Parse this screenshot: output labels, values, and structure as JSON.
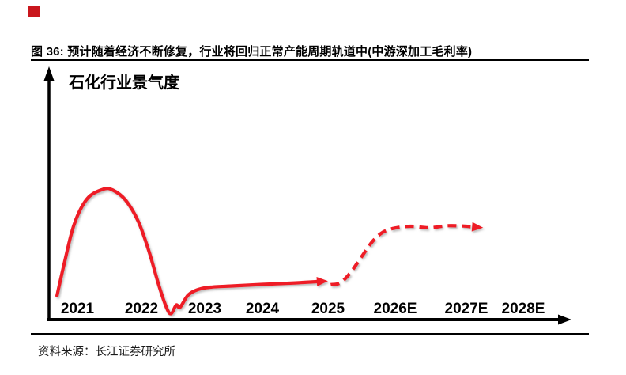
{
  "colors": {
    "brand_red": "#c9161d",
    "curve_red": "#ee1c25",
    "axis_black": "#000000",
    "text_black": "#000000"
  },
  "header": {
    "figure_title": "图 36: 预计随着经济不断修复，行业将回归正常产能周期轨道中(中游深加工毛利率)"
  },
  "chart_data": {
    "type": "line",
    "title": "石化行业景气度",
    "xlabel": "",
    "ylabel": "石化行业景气度",
    "ylim": [
      0,
      100
    ],
    "grid": false,
    "legend_position": "none",
    "x_labels": [
      "2021",
      "2022",
      "2023",
      "2024",
      "2025",
      "2026E",
      "2027E",
      "2028E"
    ],
    "note": "示意曲线：纵轴无数值刻度，数值为0-100的相对景气度估读",
    "series": [
      {
        "id": "historical-solid",
        "style": "solid",
        "color": "#ee1c25",
        "arrow_end": true,
        "points": [
          [
            2020.68,
            9.5
          ],
          [
            2020.8,
            23
          ],
          [
            2020.95,
            38
          ],
          [
            2021.15,
            48
          ],
          [
            2021.4,
            51.8
          ],
          [
            2021.55,
            51.5
          ],
          [
            2021.75,
            47.5
          ],
          [
            2021.95,
            39
          ],
          [
            2022.12,
            27
          ],
          [
            2022.27,
            14
          ],
          [
            2022.4,
            4.5
          ],
          [
            2022.47,
            2.4
          ],
          [
            2022.55,
            5.8
          ],
          [
            2022.61,
            4.9
          ],
          [
            2022.74,
            9.8
          ],
          [
            2022.9,
            12
          ],
          [
            2023.1,
            12.9
          ],
          [
            2023.5,
            13.4
          ],
          [
            2024.0,
            14
          ],
          [
            2024.5,
            14.6
          ],
          [
            2024.83,
            15.1
          ]
        ]
      },
      {
        "id": "forecast-dashed",
        "style": "dashed",
        "color": "#ee1c25",
        "arrow_end": true,
        "points": [
          [
            2025.04,
            13.9
          ],
          [
            2025.18,
            14.6
          ],
          [
            2025.33,
            18.5
          ],
          [
            2025.5,
            25
          ],
          [
            2025.66,
            31
          ],
          [
            2025.82,
            34.8
          ],
          [
            2026.0,
            36.4
          ],
          [
            2026.22,
            37.1
          ],
          [
            2026.48,
            36.5
          ],
          [
            2026.72,
            37.3
          ],
          [
            2026.95,
            37.2
          ],
          [
            2027.1,
            36.9
          ]
        ]
      }
    ]
  },
  "footer": {
    "source": "资料来源：长江证券研究所"
  }
}
